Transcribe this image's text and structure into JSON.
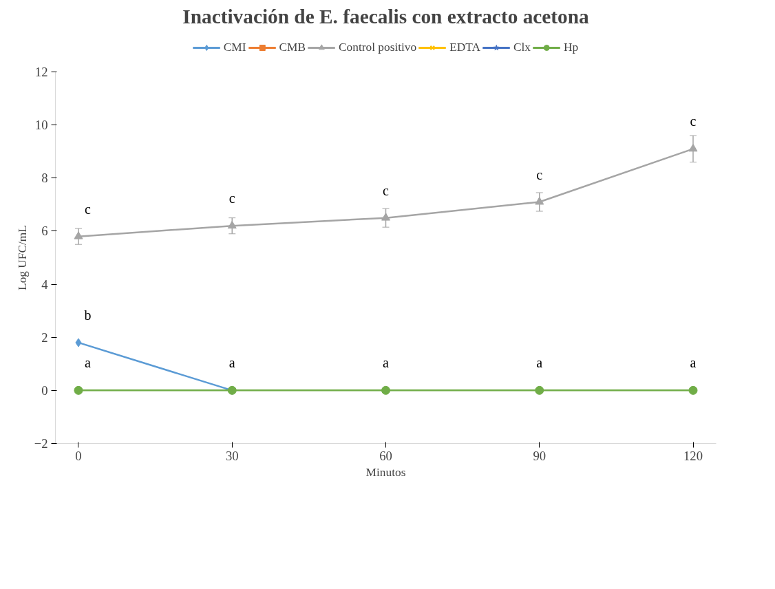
{
  "chart_data": {
    "type": "line",
    "title": "Inactivación de E. faecalis con extracto acetona",
    "xlabel": "Minutos",
    "ylabel": "Log UFC/mL",
    "categories": [
      "0",
      "30",
      "60",
      "90",
      "120"
    ],
    "ylim": [
      -2,
      12
    ],
    "yticks": [
      -2,
      0,
      2,
      4,
      6,
      8,
      10,
      12
    ],
    "grid": false,
    "legend": "top",
    "line_style": "solid",
    "series": [
      {
        "name": "CMI",
        "color": "#5b9bd5",
        "marker": "diamond",
        "values": [
          1.8,
          0,
          null,
          null,
          null
        ]
      },
      {
        "name": "CMB",
        "color": "#ed7d31",
        "marker": "square",
        "values": [
          null,
          null,
          null,
          null,
          null
        ]
      },
      {
        "name": "Control positivo",
        "color": "#a5a5a5",
        "marker": "triangle",
        "values": [
          5.8,
          6.2,
          6.5,
          7.1,
          9.1
        ],
        "errors": [
          0.3,
          0.3,
          0.35,
          0.35,
          0.5
        ]
      },
      {
        "name": "EDTA",
        "color": "#ffc000",
        "marker": "cross",
        "values": [
          null,
          null,
          null,
          null,
          null
        ]
      },
      {
        "name": "Clx",
        "color": "#4472c4",
        "marker": "star",
        "values": [
          null,
          null,
          null,
          null,
          null
        ]
      },
      {
        "name": "Hp",
        "color": "#70ad47",
        "marker": "circle",
        "values": [
          0,
          0,
          0,
          0,
          0
        ]
      }
    ],
    "annotations": [
      {
        "text": "c",
        "x": "0",
        "y": 5.8
      },
      {
        "text": "c",
        "x": "30",
        "y": 6.2
      },
      {
        "text": "c",
        "x": "60",
        "y": 6.5
      },
      {
        "text": "c",
        "x": "90",
        "y": 7.1
      },
      {
        "text": "c",
        "x": "120",
        "y": 9.1
      },
      {
        "text": "b",
        "x": "0",
        "y": 1.8
      },
      {
        "text": "a",
        "x": "0",
        "y": 0
      },
      {
        "text": "a",
        "x": "30",
        "y": 0
      },
      {
        "text": "a",
        "x": "60",
        "y": 0
      },
      {
        "text": "a",
        "x": "90",
        "y": 0
      },
      {
        "text": "a",
        "x": "120",
        "y": 0
      }
    ]
  }
}
